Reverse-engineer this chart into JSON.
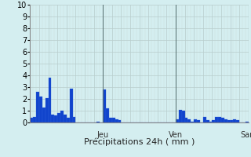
{
  "title": "Précipitations 24h ( mm )",
  "ylim": [
    0,
    10
  ],
  "yticks": [
    0,
    1,
    2,
    3,
    4,
    5,
    6,
    7,
    8,
    9,
    10
  ],
  "background_color": "#d4eef0",
  "bar_color": "#1144cc",
  "bar_edge_color": "#3366dd",
  "grid_color_major": "#b8cccc",
  "grid_color_minor": "#ccdcdc",
  "n_bars": 72,
  "day_labels": [
    "Jeu",
    "Ven",
    "Sam"
  ],
  "day_positions": [
    24,
    48,
    72
  ],
  "values": [
    0.4,
    0.5,
    2.6,
    2.2,
    1.3,
    2.1,
    3.8,
    0.7,
    0.6,
    0.8,
    1.0,
    0.7,
    0.4,
    2.9,
    0.5,
    0.0,
    0.0,
    0.0,
    0.0,
    0.0,
    0.0,
    0.0,
    0.1,
    0.0,
    2.8,
    1.2,
    0.4,
    0.4,
    0.3,
    0.2,
    0.0,
    0.0,
    0.0,
    0.0,
    0.0,
    0.0,
    0.0,
    0.0,
    0.0,
    0.0,
    0.0,
    0.0,
    0.0,
    0.0,
    0.0,
    0.0,
    0.0,
    0.0,
    0.3,
    1.1,
    1.0,
    0.4,
    0.3,
    0.1,
    0.3,
    0.2,
    0.0,
    0.5,
    0.2,
    0.1,
    0.2,
    0.5,
    0.5,
    0.4,
    0.3,
    0.2,
    0.2,
    0.3,
    0.2,
    0.0,
    0.0,
    0.1
  ],
  "figsize": [
    3.2,
    2.0
  ],
  "dpi": 100,
  "ytick_fontsize": 7,
  "title_fontsize": 8,
  "day_label_fontsize": 7
}
